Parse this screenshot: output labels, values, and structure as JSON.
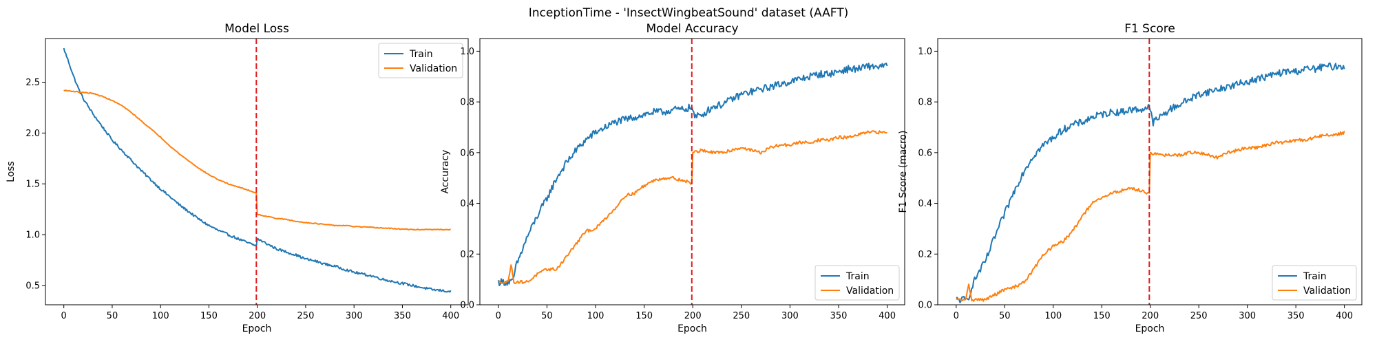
{
  "figure": {
    "title": "InceptionTime - 'InsectWingbeatSound' dataset (AAFT)",
    "colors": {
      "train": "#1f77b4",
      "validation": "#ff7f0e",
      "marker": "#e31a1c"
    }
  },
  "chart_data": [
    {
      "type": "line",
      "title": "Model Loss",
      "xlabel": "Epoch",
      "ylabel": "Loss",
      "xlim": [
        -19,
        418
      ],
      "ylim": [
        0.31,
        2.93
      ],
      "xticks": [
        0,
        50,
        100,
        150,
        200,
        250,
        300,
        350,
        400
      ],
      "yticks": [
        0.5,
        1.0,
        1.5,
        2.0,
        2.5
      ],
      "ytick_labels": [
        "0.5",
        "1.0",
        "1.5",
        "2.0",
        "2.5"
      ],
      "vline_x": 199,
      "legend": "top-right",
      "series": [
        {
          "name": "Train",
          "color": "#1f77b4",
          "noise": 0.012,
          "points": [
            [
              0,
              2.83
            ],
            [
              5,
              2.7
            ],
            [
              10,
              2.56
            ],
            [
              15,
              2.44
            ],
            [
              20,
              2.34
            ],
            [
              30,
              2.19
            ],
            [
              40,
              2.06
            ],
            [
              50,
              1.93
            ],
            [
              60,
              1.83
            ],
            [
              70,
              1.73
            ],
            [
              80,
              1.63
            ],
            [
              90,
              1.54
            ],
            [
              100,
              1.45
            ],
            [
              110,
              1.37
            ],
            [
              120,
              1.29
            ],
            [
              130,
              1.22
            ],
            [
              140,
              1.15
            ],
            [
              150,
              1.09
            ],
            [
              160,
              1.04
            ],
            [
              170,
              1.0
            ],
            [
              180,
              0.96
            ],
            [
              190,
              0.92
            ],
            [
              199,
              0.89
            ],
            [
              200,
              0.96
            ],
            [
              210,
              0.91
            ],
            [
              220,
              0.86
            ],
            [
              230,
              0.83
            ],
            [
              240,
              0.8
            ],
            [
              250,
              0.76
            ],
            [
              260,
              0.74
            ],
            [
              270,
              0.71
            ],
            [
              280,
              0.69
            ],
            [
              290,
              0.66
            ],
            [
              300,
              0.63
            ],
            [
              310,
              0.61
            ],
            [
              320,
              0.59
            ],
            [
              330,
              0.56
            ],
            [
              340,
              0.54
            ],
            [
              350,
              0.52
            ],
            [
              360,
              0.5
            ],
            [
              370,
              0.48
            ],
            [
              380,
              0.46
            ],
            [
              390,
              0.45
            ],
            [
              400,
              0.44
            ]
          ]
        },
        {
          "name": "Validation",
          "color": "#ff7f0e",
          "noise": 0.004,
          "points": [
            [
              0,
              2.42
            ],
            [
              10,
              2.41
            ],
            [
              20,
              2.4
            ],
            [
              30,
              2.39
            ],
            [
              40,
              2.36
            ],
            [
              50,
              2.32
            ],
            [
              60,
              2.27
            ],
            [
              70,
              2.2
            ],
            [
              80,
              2.12
            ],
            [
              90,
              2.04
            ],
            [
              100,
              1.96
            ],
            [
              110,
              1.87
            ],
            [
              120,
              1.79
            ],
            [
              130,
              1.72
            ],
            [
              140,
              1.65
            ],
            [
              150,
              1.59
            ],
            [
              160,
              1.54
            ],
            [
              170,
              1.5
            ],
            [
              180,
              1.47
            ],
            [
              190,
              1.44
            ],
            [
              199,
              1.41
            ],
            [
              200,
              1.2
            ],
            [
              210,
              1.18
            ],
            [
              220,
              1.16
            ],
            [
              230,
              1.15
            ],
            [
              240,
              1.13
            ],
            [
              250,
              1.12
            ],
            [
              260,
              1.11
            ],
            [
              270,
              1.1
            ],
            [
              280,
              1.09
            ],
            [
              290,
              1.09
            ],
            [
              300,
              1.08
            ],
            [
              320,
              1.07
            ],
            [
              340,
              1.06
            ],
            [
              360,
              1.05
            ],
            [
              380,
              1.05
            ],
            [
              400,
              1.05
            ]
          ]
        }
      ]
    },
    {
      "type": "line",
      "title": "Model Accuracy",
      "xlabel": "Epoch",
      "ylabel": "Accuracy",
      "xlim": [
        -19,
        418
      ],
      "ylim": [
        0.0,
        1.05
      ],
      "xticks": [
        0,
        50,
        100,
        150,
        200,
        250,
        300,
        350,
        400
      ],
      "yticks": [
        0.0,
        0.2,
        0.4,
        0.6,
        0.8,
        1.0
      ],
      "ytick_labels": [
        "0.0",
        "0.2",
        "0.4",
        "0.6",
        "0.8",
        "1.0"
      ],
      "vline_x": 199,
      "legend": "bottom-right",
      "series": [
        {
          "name": "Train",
          "color": "#1f77b4",
          "noise": 0.014,
          "points": [
            [
              0,
              0.09
            ],
            [
              15,
              0.09
            ],
            [
              18,
              0.15
            ],
            [
              25,
              0.22
            ],
            [
              30,
              0.27
            ],
            [
              40,
              0.35
            ],
            [
              50,
              0.42
            ],
            [
              60,
              0.5
            ],
            [
              70,
              0.56
            ],
            [
              80,
              0.61
            ],
            [
              90,
              0.65
            ],
            [
              100,
              0.68
            ],
            [
              110,
              0.7
            ],
            [
              120,
              0.72
            ],
            [
              130,
              0.73
            ],
            [
              140,
              0.74
            ],
            [
              150,
              0.75
            ],
            [
              160,
              0.76
            ],
            [
              170,
              0.76
            ],
            [
              180,
              0.77
            ],
            [
              190,
              0.77
            ],
            [
              199,
              0.78
            ],
            [
              202,
              0.74
            ],
            [
              210,
              0.75
            ],
            [
              220,
              0.78
            ],
            [
              230,
              0.79
            ],
            [
              240,
              0.81
            ],
            [
              250,
              0.83
            ],
            [
              260,
              0.84
            ],
            [
              270,
              0.85
            ],
            [
              280,
              0.86
            ],
            [
              290,
              0.87
            ],
            [
              300,
              0.88
            ],
            [
              310,
              0.89
            ],
            [
              320,
              0.9
            ],
            [
              330,
              0.91
            ],
            [
              340,
              0.91
            ],
            [
              350,
              0.92
            ],
            [
              360,
              0.93
            ],
            [
              370,
              0.93
            ],
            [
              380,
              0.94
            ],
            [
              390,
              0.94
            ],
            [
              400,
              0.94
            ]
          ]
        },
        {
          "name": "Validation",
          "color": "#ff7f0e",
          "noise": 0.006,
          "points": [
            [
              0,
              0.09
            ],
            [
              10,
              0.09
            ],
            [
              13,
              0.16
            ],
            [
              16,
              0.09
            ],
            [
              30,
              0.09
            ],
            [
              40,
              0.12
            ],
            [
              50,
              0.14
            ],
            [
              60,
              0.14
            ],
            [
              70,
              0.19
            ],
            [
              80,
              0.24
            ],
            [
              90,
              0.29
            ],
            [
              100,
              0.3
            ],
            [
              110,
              0.34
            ],
            [
              120,
              0.38
            ],
            [
              130,
              0.43
            ],
            [
              140,
              0.44
            ],
            [
              150,
              0.47
            ],
            [
              160,
              0.49
            ],
            [
              170,
              0.5
            ],
            [
              180,
              0.5
            ],
            [
              190,
              0.49
            ],
            [
              199,
              0.48
            ],
            [
              200,
              0.6
            ],
            [
              210,
              0.61
            ],
            [
              220,
              0.6
            ],
            [
              230,
              0.6
            ],
            [
              240,
              0.61
            ],
            [
              250,
              0.62
            ],
            [
              260,
              0.61
            ],
            [
              270,
              0.6
            ],
            [
              280,
              0.62
            ],
            [
              290,
              0.63
            ],
            [
              300,
              0.63
            ],
            [
              310,
              0.64
            ],
            [
              320,
              0.64
            ],
            [
              330,
              0.65
            ],
            [
              340,
              0.65
            ],
            [
              350,
              0.66
            ],
            [
              360,
              0.66
            ],
            [
              370,
              0.67
            ],
            [
              380,
              0.68
            ],
            [
              390,
              0.68
            ],
            [
              400,
              0.68
            ]
          ]
        }
      ]
    },
    {
      "type": "line",
      "title": "F1 Score",
      "xlabel": "Epoch",
      "ylabel": "F1 Score (macro)",
      "xlim": [
        -19,
        418
      ],
      "ylim": [
        0.0,
        1.05
      ],
      "xticks": [
        0,
        50,
        100,
        150,
        200,
        250,
        300,
        350,
        400
      ],
      "yticks": [
        0.0,
        0.2,
        0.4,
        0.6,
        0.8,
        1.0
      ],
      "ytick_labels": [
        "0.0",
        "0.2",
        "0.4",
        "0.6",
        "0.8",
        "1.0"
      ],
      "vline_x": 199,
      "legend": "bottom-right",
      "series": [
        {
          "name": "Train",
          "color": "#1f77b4",
          "noise": 0.014,
          "points": [
            [
              0,
              0.02
            ],
            [
              12,
              0.02
            ],
            [
              17,
              0.08
            ],
            [
              22,
              0.12
            ],
            [
              30,
              0.17
            ],
            [
              40,
              0.27
            ],
            [
              50,
              0.36
            ],
            [
              60,
              0.45
            ],
            [
              70,
              0.53
            ],
            [
              80,
              0.59
            ],
            [
              90,
              0.63
            ],
            [
              100,
              0.66
            ],
            [
              110,
              0.69
            ],
            [
              120,
              0.71
            ],
            [
              130,
              0.72
            ],
            [
              140,
              0.74
            ],
            [
              150,
              0.75
            ],
            [
              160,
              0.76
            ],
            [
              170,
              0.76
            ],
            [
              180,
              0.77
            ],
            [
              190,
              0.77
            ],
            [
              199,
              0.78
            ],
            [
              203,
              0.72
            ],
            [
              210,
              0.74
            ],
            [
              220,
              0.77
            ],
            [
              230,
              0.79
            ],
            [
              240,
              0.81
            ],
            [
              250,
              0.83
            ],
            [
              260,
              0.84
            ],
            [
              270,
              0.85
            ],
            [
              280,
              0.86
            ],
            [
              290,
              0.87
            ],
            [
              300,
              0.88
            ],
            [
              310,
              0.89
            ],
            [
              320,
              0.9
            ],
            [
              330,
              0.91
            ],
            [
              340,
              0.92
            ],
            [
              350,
              0.92
            ],
            [
              360,
              0.93
            ],
            [
              370,
              0.93
            ],
            [
              380,
              0.94
            ],
            [
              390,
              0.94
            ],
            [
              400,
              0.94
            ]
          ]
        },
        {
          "name": "Validation",
          "color": "#ff7f0e",
          "noise": 0.006,
          "points": [
            [
              0,
              0.02
            ],
            [
              10,
              0.02
            ],
            [
              13,
              0.08
            ],
            [
              16,
              0.02
            ],
            [
              30,
              0.02
            ],
            [
              40,
              0.04
            ],
            [
              50,
              0.06
            ],
            [
              60,
              0.07
            ],
            [
              70,
              0.09
            ],
            [
              80,
              0.14
            ],
            [
              90,
              0.2
            ],
            [
              100,
              0.23
            ],
            [
              110,
              0.25
            ],
            [
              120,
              0.29
            ],
            [
              130,
              0.35
            ],
            [
              140,
              0.4
            ],
            [
              150,
              0.42
            ],
            [
              160,
              0.44
            ],
            [
              170,
              0.45
            ],
            [
              180,
              0.46
            ],
            [
              190,
              0.45
            ],
            [
              199,
              0.44
            ],
            [
              200,
              0.6
            ],
            [
              210,
              0.59
            ],
            [
              220,
              0.59
            ],
            [
              230,
              0.59
            ],
            [
              240,
              0.6
            ],
            [
              250,
              0.6
            ],
            [
              260,
              0.59
            ],
            [
              270,
              0.58
            ],
            [
              280,
              0.6
            ],
            [
              290,
              0.61
            ],
            [
              300,
              0.62
            ],
            [
              310,
              0.62
            ],
            [
              320,
              0.63
            ],
            [
              330,
              0.64
            ],
            [
              340,
              0.64
            ],
            [
              350,
              0.65
            ],
            [
              360,
              0.65
            ],
            [
              370,
              0.66
            ],
            [
              380,
              0.67
            ],
            [
              390,
              0.67
            ],
            [
              400,
              0.68
            ]
          ]
        }
      ]
    }
  ]
}
